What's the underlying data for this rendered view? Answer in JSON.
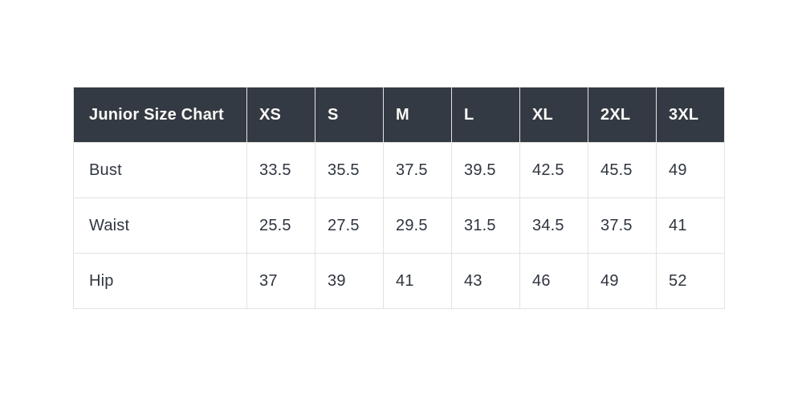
{
  "table": {
    "title": "Junior Size Chart",
    "columns": [
      "XS",
      "S",
      "M",
      "L",
      "XL",
      "2XL",
      "3XL"
    ],
    "rows": [
      {
        "label": "Bust",
        "values": [
          "33.5",
          "35.5",
          "37.5",
          "39.5",
          "42.5",
          "45.5",
          "49"
        ]
      },
      {
        "label": "Waist",
        "values": [
          "25.5",
          "27.5",
          "29.5",
          "31.5",
          "34.5",
          "37.5",
          "41"
        ]
      },
      {
        "label": "Hip",
        "values": [
          "37",
          "39",
          "41",
          "43",
          "46",
          "49",
          "52"
        ]
      }
    ]
  },
  "chart_data": {
    "type": "table",
    "title": "Junior Size Chart",
    "columns": [
      "Junior Size Chart",
      "XS",
      "S",
      "M",
      "L",
      "XL",
      "2XL",
      "3XL"
    ],
    "rows": [
      [
        "Bust",
        33.5,
        35.5,
        37.5,
        39.5,
        42.5,
        45.5,
        49
      ],
      [
        "Waist",
        25.5,
        27.5,
        29.5,
        31.5,
        34.5,
        37.5,
        41
      ],
      [
        "Hip",
        37,
        39,
        41,
        43,
        46,
        49,
        52
      ]
    ]
  },
  "colors": {
    "page_background": "#ffffff",
    "header_background": "#343a43",
    "header_text": "#fbfaf8",
    "body_text": "#2f3540",
    "border": "#e2e2e2"
  }
}
